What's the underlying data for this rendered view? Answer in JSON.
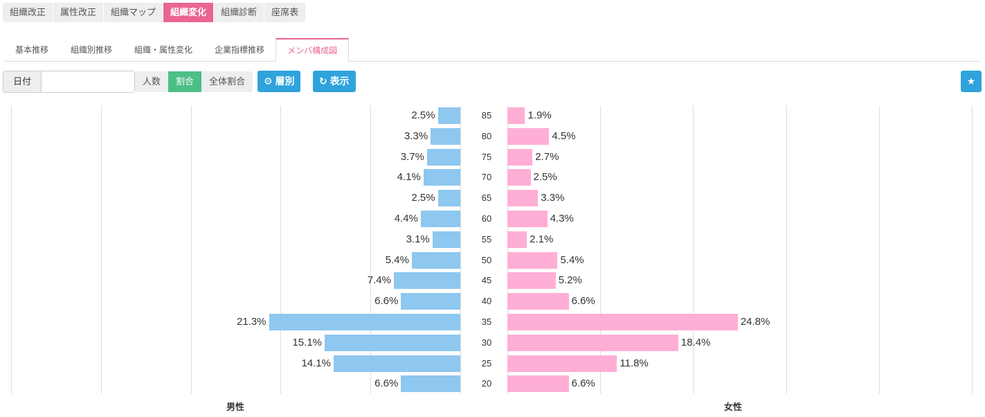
{
  "topnav": [
    "組織改正",
    "属性改正",
    "組織マップ",
    "組織変化",
    "組織診断",
    "座席表"
  ],
  "subtabs": [
    "基本推移",
    "組織別推移",
    "組織・属性変化",
    "企業指標推移",
    "メンバ構成図"
  ],
  "date_label": "日付",
  "date_value": "",
  "segments": [
    "人数",
    "割合",
    "全体割合"
  ],
  "layer_button": "層別",
  "show_button": "表示",
  "chart_data": {
    "type": "bar",
    "orientation": "horizontal-population-pyramid",
    "categories": [
      "85",
      "80",
      "75",
      "70",
      "65",
      "60",
      "55",
      "50",
      "45",
      "40",
      "35",
      "30",
      "25",
      "20"
    ],
    "series": [
      {
        "name": "男性",
        "color": "#8ec7ef",
        "values": [
          2.5,
          3.3,
          3.7,
          4.1,
          2.5,
          4.4,
          3.1,
          5.4,
          7.4,
          6.6,
          21.3,
          15.1,
          14.1,
          6.6
        ]
      },
      {
        "name": "女性",
        "color": "#ffaed5",
        "values": [
          1.9,
          4.5,
          2.7,
          2.5,
          3.3,
          4.3,
          2.1,
          5.4,
          5.2,
          6.6,
          24.8,
          18.4,
          11.8,
          6.6
        ]
      }
    ],
    "xlim": [
      0,
      50
    ],
    "grid_step": 10,
    "unit": "%"
  }
}
